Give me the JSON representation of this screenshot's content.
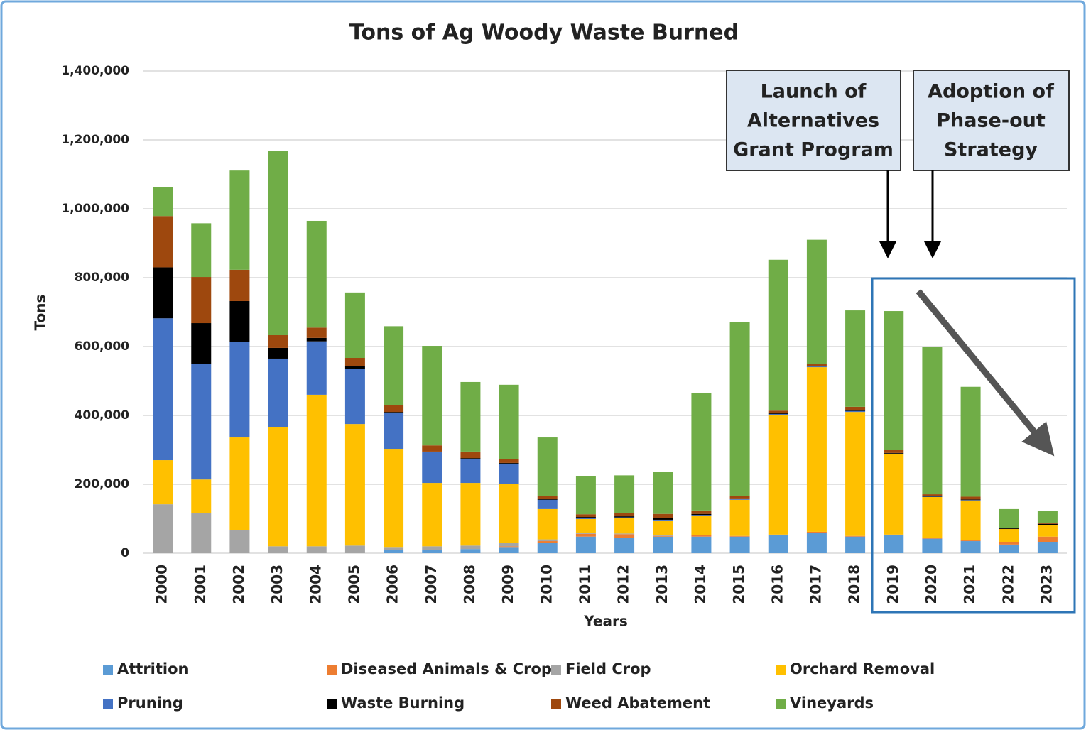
{
  "chart_data": {
    "type": "stacked_bar",
    "title": "Tons of Ag Woody Waste Burned",
    "x_label": "Years",
    "y_label": "Tons",
    "categories": [
      "2000",
      "2001",
      "2002",
      "2003",
      "2004",
      "2005",
      "2006",
      "2007",
      "2008",
      "2009",
      "2010",
      "2011",
      "2012",
      "2013",
      "2014",
      "2015",
      "2016",
      "2017",
      "2018",
      "2019",
      "2020",
      "2021",
      "2022",
      "2023"
    ],
    "series": [
      {
        "name": "Attrition",
        "color": "#5b9bd5",
        "values": [
          0,
          0,
          0,
          0,
          0,
          0,
          10000,
          10000,
          12000,
          18000,
          30000,
          48000,
          45000,
          48000,
          48000,
          48000,
          52000,
          58000,
          48000,
          52000,
          42000,
          35000,
          25000,
          33000
        ]
      },
      {
        "name": "Diseased Animals & Crops",
        "color": "#ed7d31",
        "values": [
          0,
          0,
          0,
          0,
          0,
          0,
          0,
          0,
          0,
          2000,
          5000,
          8000,
          10000,
          2000,
          4000,
          2000,
          2000,
          4000,
          2000,
          2000,
          2000,
          2000,
          8000,
          15000
        ]
      },
      {
        "name": "Field Crop",
        "color": "#a5a5a5",
        "values": [
          142000,
          116000,
          68000,
          20000,
          20000,
          22000,
          8000,
          10000,
          10000,
          10000,
          5000,
          2000,
          2000,
          2000,
          0,
          0,
          0,
          0,
          0,
          0,
          0,
          0,
          0,
          0
        ]
      },
      {
        "name": "Orchard Removal",
        "color": "#ffc000",
        "values": [
          128000,
          98000,
          268000,
          345000,
          440000,
          353000,
          285000,
          184000,
          182000,
          172000,
          88000,
          41000,
          44000,
          43000,
          57000,
          105000,
          348000,
          478000,
          360000,
          233000,
          119000,
          116000,
          37000,
          34000
        ]
      },
      {
        "name": "Pruning",
        "color": "#4472c4",
        "values": [
          412000,
          336000,
          278000,
          200000,
          155000,
          161000,
          105000,
          89000,
          70000,
          58000,
          27000,
          4000,
          3000,
          2000,
          2000,
          2000,
          2000,
          2000,
          3000,
          2000,
          1000,
          1000,
          0,
          0
        ]
      },
      {
        "name": "Waste Burning",
        "color": "#000000",
        "values": [
          148000,
          118000,
          118000,
          31000,
          10000,
          8000,
          2000,
          2000,
          2000,
          2000,
          3000,
          2000,
          3000,
          5000,
          3000,
          2000,
          2000,
          2000,
          2000,
          2000,
          1000,
          2000,
          2000,
          3000
        ]
      },
      {
        "name": "Weed Abatement",
        "color": "#9e480e",
        "values": [
          149000,
          134000,
          91000,
          37000,
          30000,
          23000,
          20000,
          18000,
          19000,
          12000,
          9000,
          8000,
          10000,
          12000,
          10000,
          8000,
          8000,
          6000,
          10000,
          10000,
          6000,
          8000,
          2000,
          2000
        ]
      },
      {
        "name": "Vineyards",
        "color": "#70ad47",
        "values": [
          83000,
          156000,
          288000,
          536000,
          310000,
          190000,
          229000,
          289000,
          202000,
          215000,
          169000,
          110000,
          109000,
          123000,
          342000,
          505000,
          438000,
          360000,
          280000,
          402000,
          429000,
          319000,
          54000,
          35000
        ]
      }
    ],
    "ylim": [
      0,
      1400000
    ],
    "yticks": [
      0,
      {
        "value": 200000,
        "label": "200,000"
      },
      {
        "value": 400000,
        "label": "400,000"
      },
      {
        "value": 600000,
        "label": "600,000"
      },
      {
        "value": 800000,
        "label": "800,000"
      },
      {
        "value": 1000000,
        "label": "1,000,000"
      },
      {
        "value": 1200000,
        "label": "1,200,000"
      },
      {
        "value": 1400000,
        "label": "1,400,000"
      }
    ],
    "grid": true,
    "legend": "bottom",
    "annotations": [
      {
        "lines": [
          "Launch of",
          "Alternatives",
          "Grant Program"
        ]
      },
      {
        "lines": [
          "Adoption of",
          "Phase-out",
          "Strategy"
        ]
      }
    ]
  }
}
